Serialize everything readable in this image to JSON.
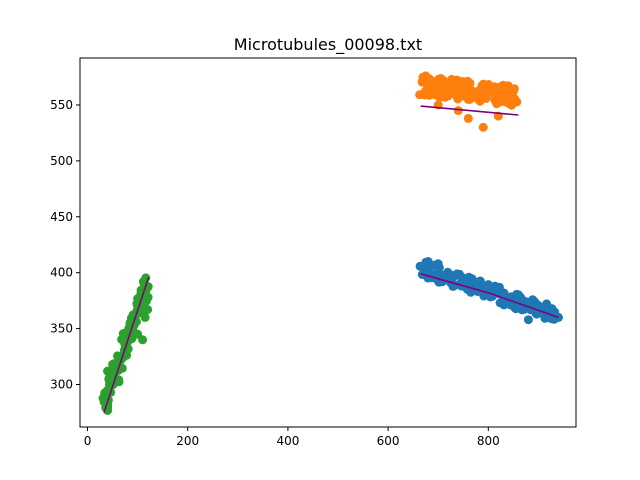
{
  "chart_data": {
    "type": "scatter",
    "title": "Microtubules_00098.txt",
    "xlabel": "",
    "ylabel": "",
    "xlim": [
      -15,
      975
    ],
    "ylim": [
      262,
      592
    ],
    "xticks": [
      0,
      200,
      400,
      600,
      800
    ],
    "yticks": [
      300,
      350,
      400,
      450,
      500,
      550
    ],
    "grid": false,
    "series": [
      {
        "color": "#1f77b4",
        "cluster": {
          "start": [
            665,
            405
          ],
          "end": [
            935,
            362
          ],
          "spread": 7,
          "count": 140,
          "extra": [
            [
              680,
              410
            ],
            [
              700,
              408
            ],
            [
              760,
              390
            ],
            [
              800,
              385
            ],
            [
              860,
              370
            ],
            [
              880,
              358
            ],
            [
              920,
              368
            ],
            [
              940,
              360
            ]
          ]
        }
      },
      {
        "color": "#ff7f0e",
        "cluster": {
          "start": [
            670,
            568
          ],
          "end": [
            855,
            558
          ],
          "spread": 9,
          "count": 140,
          "extra": [
            [
              675,
              576
            ],
            [
              685,
              572
            ],
            [
              700,
              565
            ],
            [
              740,
              545
            ],
            [
              760,
              538
            ],
            [
              790,
              530
            ],
            [
              820,
              540
            ],
            [
              830,
              565
            ],
            [
              850,
              562
            ],
            [
              855,
              553
            ],
            [
              700,
              550
            ]
          ]
        }
      },
      {
        "color": "#2ca02c",
        "cluster": {
          "start": [
            33,
            280
          ],
          "end": [
            122,
            396
          ],
          "spread": 8,
          "count": 110,
          "extra": [
            [
              40,
              312
            ],
            [
              50,
              318
            ],
            [
              60,
              316
            ],
            [
              95,
              355
            ],
            [
              100,
              345
            ],
            [
              115,
              360
            ],
            [
              120,
              367
            ],
            [
              110,
              340
            ]
          ]
        }
      }
    ],
    "fit_lines": [
      {
        "color": "#800080",
        "x": [
          665,
          860
        ],
        "y": [
          549,
          541
        ]
      },
      {
        "color": "#800080",
        "x": [
          665,
          800,
          940
        ],
        "y": [
          399,
          382,
          360
        ]
      },
      {
        "color": "#800080",
        "x": [
          33,
          122
        ],
        "y": [
          275,
          396
        ]
      }
    ]
  }
}
